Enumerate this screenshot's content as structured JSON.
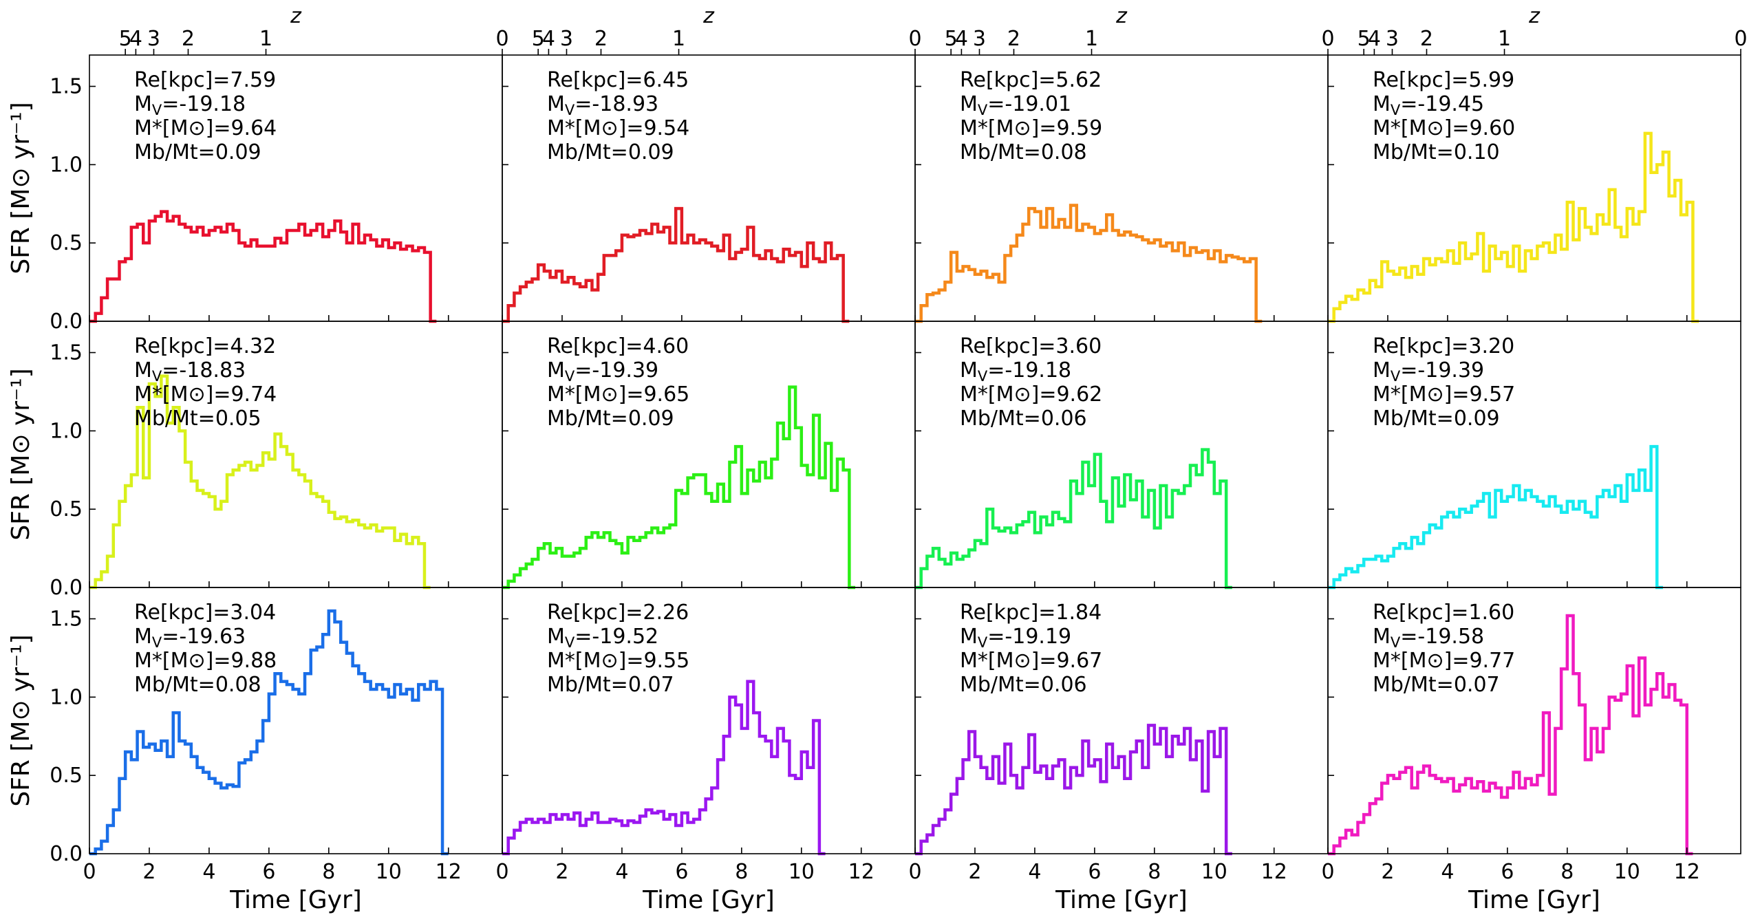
{
  "chart_data": {
    "type": "line",
    "drawstyle": "steps",
    "grid": false,
    "layout": "3 rows x 4 columns, shared axes",
    "xlabel": "Time [Gyr]",
    "ylabel": "SFR [M⊙ yr⁻¹]",
    "xlim": [
      0,
      13.8
    ],
    "ylim": [
      0,
      1.7
    ],
    "xticks": [
      0,
      2,
      4,
      6,
      8,
      10,
      12
    ],
    "yticks": [
      "0.0",
      "0.5",
      "1.0",
      "1.5"
    ],
    "top_axis": {
      "label": "z",
      "ticks": [
        {
          "label": "5",
          "time": 1.2
        },
        {
          "label": "4",
          "time": 1.55
        },
        {
          "label": "3",
          "time": 2.15
        },
        {
          "label": "2",
          "time": 3.3
        },
        {
          "label": "1",
          "time": 5.9
        },
        {
          "label": "0",
          "time": 13.8
        }
      ]
    },
    "bin_times_gyr": [
      0.2,
      0.4,
      0.6,
      0.8,
      1.0,
      1.2,
      1.4,
      1.6,
      1.8,
      2.0,
      2.2,
      2.4,
      2.6,
      2.8,
      3.0,
      3.2,
      3.4,
      3.6,
      3.8,
      4.0,
      4.2,
      4.4,
      4.6,
      4.8,
      5.0,
      5.2,
      5.4,
      5.6,
      5.8,
      6.0,
      6.2,
      6.4,
      6.6,
      6.8,
      7.0,
      7.2,
      7.4,
      7.6,
      7.8,
      8.0,
      8.2,
      8.4,
      8.6,
      8.8,
      9.0,
      9.2,
      9.4,
      9.6,
      9.8,
      10.0,
      10.2,
      10.4,
      10.6,
      10.8,
      11.0,
      11.2,
      11.4,
      11.6,
      11.8,
      12.0,
      12.2,
      12.4,
      12.6,
      12.8,
      13.0,
      13.2,
      13.4,
      13.6,
      13.8
    ],
    "panels": [
      {
        "row": 0,
        "col": 0,
        "color": "#e8102e",
        "re": "Re[kpc]=7.59",
        "mv_base": "M",
        "mv_sub": "V",
        "mv_val": "=-19.18",
        "mstar": "M*[M⊙]=9.64",
        "mbmt": "Mb/Mt=0.09",
        "values": [
          0.0,
          0.05,
          0.15,
          0.27,
          0.27,
          0.38,
          0.4,
          0.6,
          0.62,
          0.5,
          0.64,
          0.67,
          0.7,
          0.64,
          0.67,
          0.62,
          0.6,
          0.57,
          0.6,
          0.55,
          0.58,
          0.6,
          0.57,
          0.62,
          0.58,
          0.5,
          0.48,
          0.52,
          0.48,
          0.48,
          0.48,
          0.53,
          0.5,
          0.58,
          0.58,
          0.62,
          0.55,
          0.58,
          0.62,
          0.54,
          0.58,
          0.64,
          0.57,
          0.5,
          0.62,
          0.5,
          0.55,
          0.52,
          0.48,
          0.52,
          0.47,
          0.5,
          0.46,
          0.48,
          0.45,
          0.47,
          0.44,
          0.0
        ]
      },
      {
        "row": 0,
        "col": 1,
        "color": "#e11d25",
        "re": "Re[kpc]=6.45",
        "mv_base": "M",
        "mv_sub": "V",
        "mv_val": "=-18.93",
        "mstar": "M*[M⊙]=9.54",
        "mbmt": "Mb/Mt=0.09",
        "values": [
          0.0,
          0.1,
          0.18,
          0.22,
          0.25,
          0.27,
          0.36,
          0.32,
          0.28,
          0.32,
          0.25,
          0.28,
          0.24,
          0.22,
          0.26,
          0.2,
          0.3,
          0.42,
          0.42,
          0.45,
          0.55,
          0.54,
          0.55,
          0.58,
          0.56,
          0.62,
          0.57,
          0.6,
          0.5,
          0.72,
          0.5,
          0.55,
          0.5,
          0.52,
          0.5,
          0.48,
          0.45,
          0.55,
          0.4,
          0.44,
          0.46,
          0.6,
          0.42,
          0.4,
          0.45,
          0.4,
          0.38,
          0.46,
          0.42,
          0.44,
          0.35,
          0.5,
          0.4,
          0.38,
          0.5,
          0.4,
          0.42,
          0.0
        ]
      },
      {
        "row": 0,
        "col": 2,
        "color": "#f5891b",
        "re": "Re[kpc]=5.62",
        "mv_base": "M",
        "mv_sub": "V",
        "mv_val": "=-19.01",
        "mstar": "M*[M⊙]=9.59",
        "mbmt": "Mb/Mt=0.08",
        "values": [
          0.0,
          0.1,
          0.17,
          0.18,
          0.2,
          0.25,
          0.44,
          0.32,
          0.35,
          0.33,
          0.3,
          0.32,
          0.28,
          0.3,
          0.25,
          0.42,
          0.48,
          0.55,
          0.62,
          0.72,
          0.7,
          0.6,
          0.72,
          0.6,
          0.65,
          0.6,
          0.74,
          0.58,
          0.62,
          0.6,
          0.56,
          0.58,
          0.68,
          0.58,
          0.55,
          0.57,
          0.55,
          0.54,
          0.52,
          0.5,
          0.52,
          0.48,
          0.5,
          0.45,
          0.5,
          0.42,
          0.47,
          0.44,
          0.45,
          0.4,
          0.45,
          0.38,
          0.42,
          0.41,
          0.4,
          0.38,
          0.4,
          0.0
        ]
      },
      {
        "row": 0,
        "col": 3,
        "color": "#f5e61a",
        "re": "Re[kpc]=5.99",
        "mv_base": "M",
        "mv_sub": "V",
        "mv_val": "=-19.45",
        "mstar": "M*[M⊙]=9.60",
        "mbmt": "Mb/Mt=0.10",
        "values": [
          0.0,
          0.08,
          0.12,
          0.16,
          0.14,
          0.2,
          0.18,
          0.26,
          0.22,
          0.38,
          0.32,
          0.3,
          0.34,
          0.28,
          0.35,
          0.3,
          0.4,
          0.36,
          0.4,
          0.38,
          0.45,
          0.37,
          0.5,
          0.4,
          0.43,
          0.56,
          0.32,
          0.48,
          0.4,
          0.44,
          0.35,
          0.48,
          0.32,
          0.45,
          0.4,
          0.48,
          0.5,
          0.44,
          0.55,
          0.46,
          0.76,
          0.52,
          0.72,
          0.6,
          0.56,
          0.68,
          0.62,
          0.84,
          0.6,
          0.54,
          0.72,
          0.62,
          0.7,
          1.2,
          0.95,
          1.0,
          1.08,
          0.8,
          0.9,
          0.68,
          0.76,
          0.0
        ]
      },
      {
        "row": 1,
        "col": 0,
        "color": "#d8f01b",
        "re": "Re[kpc]=4.32",
        "mv_base": "M",
        "mv_sub": "V",
        "mv_val": "=-18.83",
        "mstar": "M*[M⊙]=9.74",
        "mbmt": "Mb/Mt=0.05",
        "values": [
          0.0,
          0.05,
          0.1,
          0.2,
          0.4,
          0.55,
          0.65,
          0.72,
          1.15,
          0.7,
          1.3,
          1.22,
          1.35,
          1.05,
          1.15,
          1.0,
          0.8,
          0.68,
          0.62,
          0.6,
          0.58,
          0.5,
          0.55,
          0.72,
          0.75,
          0.78,
          0.8,
          0.75,
          0.78,
          0.86,
          0.82,
          0.98,
          0.9,
          0.85,
          0.75,
          0.72,
          0.68,
          0.6,
          0.58,
          0.55,
          0.48,
          0.44,
          0.45,
          0.42,
          0.43,
          0.4,
          0.38,
          0.4,
          0.36,
          0.38,
          0.38,
          0.3,
          0.34,
          0.28,
          0.32,
          0.28,
          0.0
        ]
      },
      {
        "row": 1,
        "col": 1,
        "color": "#2cef15",
        "re": "Re[kpc]=4.60",
        "mv_base": "M",
        "mv_sub": "V",
        "mv_val": "=-19.39",
        "mstar": "M*[M⊙]=9.65",
        "mbmt": "Mb/Mt=0.09",
        "values": [
          0.0,
          0.04,
          0.08,
          0.12,
          0.15,
          0.18,
          0.25,
          0.28,
          0.22,
          0.25,
          0.2,
          0.2,
          0.22,
          0.25,
          0.32,
          0.35,
          0.32,
          0.35,
          0.3,
          0.28,
          0.22,
          0.32,
          0.3,
          0.32,
          0.35,
          0.38,
          0.35,
          0.38,
          0.4,
          0.62,
          0.6,
          0.7,
          0.72,
          0.72,
          0.6,
          0.55,
          0.66,
          0.55,
          0.8,
          0.9,
          0.6,
          0.75,
          0.68,
          0.8,
          0.7,
          0.82,
          1.05,
          0.95,
          1.28,
          1.02,
          0.78,
          0.72,
          1.1,
          0.7,
          0.92,
          0.62,
          0.82,
          0.75,
          0.0
        ]
      },
      {
        "row": 1,
        "col": 2,
        "color": "#17ef51",
        "re": "Re[kpc]=3.60",
        "mv_base": "M",
        "mv_sub": "V",
        "mv_val": "=-19.18",
        "mstar": "M*[M⊙]=9.62",
        "mbmt": "Mb/Mt=0.06",
        "values": [
          0.0,
          0.12,
          0.2,
          0.25,
          0.18,
          0.15,
          0.22,
          0.18,
          0.2,
          0.24,
          0.3,
          0.28,
          0.5,
          0.38,
          0.36,
          0.38,
          0.35,
          0.4,
          0.42,
          0.48,
          0.35,
          0.45,
          0.4,
          0.48,
          0.44,
          0.42,
          0.68,
          0.6,
          0.8,
          0.65,
          0.85,
          0.55,
          0.42,
          0.7,
          0.52,
          0.72,
          0.56,
          0.68,
          0.45,
          0.62,
          0.38,
          0.65,
          0.45,
          0.62,
          0.6,
          0.65,
          0.78,
          0.72,
          0.88,
          0.8,
          0.6,
          0.68,
          0.0
        ]
      },
      {
        "row": 1,
        "col": 3,
        "color": "#17eaf0",
        "re": "Re[kpc]=3.20",
        "mv_base": "M",
        "mv_sub": "V",
        "mv_val": "=-19.39",
        "mstar": "M*[M⊙]=9.57",
        "mbmt": "Mb/Mt=0.09",
        "values": [
          0.0,
          0.05,
          0.08,
          0.12,
          0.1,
          0.14,
          0.18,
          0.18,
          0.2,
          0.17,
          0.2,
          0.25,
          0.28,
          0.25,
          0.32,
          0.28,
          0.35,
          0.4,
          0.38,
          0.45,
          0.48,
          0.45,
          0.5,
          0.48,
          0.52,
          0.55,
          0.6,
          0.45,
          0.62,
          0.55,
          0.58,
          0.65,
          0.56,
          0.62,
          0.58,
          0.55,
          0.52,
          0.58,
          0.52,
          0.48,
          0.55,
          0.5,
          0.55,
          0.48,
          0.45,
          0.58,
          0.62,
          0.58,
          0.65,
          0.55,
          0.72,
          0.62,
          0.75,
          0.62,
          0.9,
          0.0
        ]
      },
      {
        "row": 2,
        "col": 0,
        "color": "#1a6ee8",
        "re": "Re[kpc]=3.04",
        "mv_base": "M",
        "mv_sub": "V",
        "mv_val": "=-19.63",
        "mstar": "M*[M⊙]=9.88",
        "mbmt": "Mb/Mt=0.08",
        "values": [
          0.0,
          0.03,
          0.08,
          0.18,
          0.28,
          0.48,
          0.65,
          0.6,
          0.78,
          0.68,
          0.7,
          0.66,
          0.72,
          0.62,
          0.9,
          0.72,
          0.7,
          0.62,
          0.55,
          0.52,
          0.48,
          0.45,
          0.42,
          0.44,
          0.43,
          0.58,
          0.6,
          0.65,
          0.72,
          0.85,
          1.02,
          1.15,
          1.1,
          1.08,
          1.05,
          1.02,
          1.15,
          1.3,
          1.32,
          1.4,
          1.55,
          1.48,
          1.35,
          1.28,
          1.2,
          1.15,
          1.1,
          1.05,
          1.08,
          1.05,
          1.0,
          1.08,
          1.02,
          1.05,
          0.98,
          1.08,
          1.05,
          1.1,
          1.05,
          0.0
        ]
      },
      {
        "row": 2,
        "col": 1,
        "color": "#9b17f0",
        "re": "Re[kpc]=2.26",
        "mv_base": "M",
        "mv_sub": "V",
        "mv_val": "=-19.52",
        "mstar": "M*[M⊙]=9.55",
        "mbmt": "Mb/Mt=0.07",
        "values": [
          0.0,
          0.1,
          0.15,
          0.2,
          0.22,
          0.2,
          0.22,
          0.2,
          0.25,
          0.22,
          0.25,
          0.22,
          0.26,
          0.18,
          0.22,
          0.26,
          0.2,
          0.2,
          0.22,
          0.21,
          0.18,
          0.21,
          0.2,
          0.24,
          0.28,
          0.26,
          0.27,
          0.22,
          0.25,
          0.18,
          0.26,
          0.2,
          0.22,
          0.28,
          0.35,
          0.42,
          0.6,
          0.75,
          1.0,
          0.95,
          0.8,
          1.1,
          0.9,
          0.75,
          0.72,
          0.62,
          0.8,
          0.72,
          0.5,
          0.48,
          0.65,
          0.55,
          0.85,
          0.0
        ]
      },
      {
        "row": 2,
        "col": 2,
        "color": "#9b17e8",
        "re": "Re[kpc]=1.84",
        "mv_base": "M",
        "mv_sub": "V",
        "mv_val": "=-19.19",
        "mstar": "M*[M⊙]=9.67",
        "mbmt": "Mb/Mt=0.06",
        "values": [
          0.0,
          0.08,
          0.12,
          0.18,
          0.22,
          0.28,
          0.38,
          0.48,
          0.6,
          0.78,
          0.62,
          0.55,
          0.48,
          0.62,
          0.45,
          0.7,
          0.5,
          0.42,
          0.55,
          0.76,
          0.52,
          0.56,
          0.48,
          0.56,
          0.6,
          0.42,
          0.55,
          0.5,
          0.72,
          0.56,
          0.6,
          0.46,
          0.7,
          0.55,
          0.62,
          0.48,
          0.65,
          0.72,
          0.55,
          0.82,
          0.7,
          0.8,
          0.62,
          0.75,
          0.7,
          0.8,
          0.6,
          0.72,
          0.4,
          0.78,
          0.62,
          0.8,
          0.0
        ]
      },
      {
        "row": 2,
        "col": 3,
        "color": "#f01bc0",
        "re": "Re[kpc]=1.60",
        "mv_base": "M",
        "mv_sub": "V",
        "mv_val": "=-19.58",
        "mstar": "M*[M⊙]=9.77",
        "mbmt": "Mb/Mt=0.07",
        "values": [
          0.0,
          0.05,
          0.1,
          0.15,
          0.12,
          0.2,
          0.25,
          0.32,
          0.35,
          0.45,
          0.5,
          0.48,
          0.52,
          0.55,
          0.42,
          0.52,
          0.56,
          0.5,
          0.48,
          0.46,
          0.48,
          0.4,
          0.44,
          0.48,
          0.42,
          0.46,
          0.4,
          0.45,
          0.42,
          0.36,
          0.42,
          0.52,
          0.42,
          0.48,
          0.44,
          0.5,
          0.9,
          0.38,
          0.8,
          1.18,
          1.52,
          1.15,
          0.95,
          0.6,
          0.8,
          0.65,
          0.8,
          1.0,
          0.98,
          1.02,
          1.2,
          0.88,
          1.25,
          0.95,
          1.05,
          1.15,
          1.0,
          1.08,
          0.98,
          0.95,
          0.0
        ]
      }
    ]
  }
}
